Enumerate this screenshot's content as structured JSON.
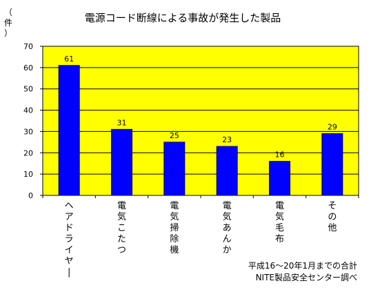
{
  "chart_data": {
    "type": "bar",
    "title": "電源コード断線による事故が発生した製品",
    "ylabel": [
      "（",
      "件",
      "）"
    ],
    "ylim": [
      0,
      70
    ],
    "yticks": [
      0,
      10,
      20,
      30,
      40,
      50,
      60,
      70
    ],
    "grid": true,
    "categories": [
      "ヘアドライヤー",
      "電気こたつ",
      "電気掃除機",
      "電気あんか",
      "電気毛布",
      "その他"
    ],
    "values": [
      61,
      31,
      25,
      23,
      16,
      29
    ],
    "note": [
      "平成16～20年1月までの合計",
      "NITE製品安全センター調べ"
    ]
  },
  "colors": {
    "plot_bg": "#ffff00",
    "bar": "#0000ff",
    "grid": "#000000",
    "axis": "#000000",
    "text": "#000000"
  }
}
